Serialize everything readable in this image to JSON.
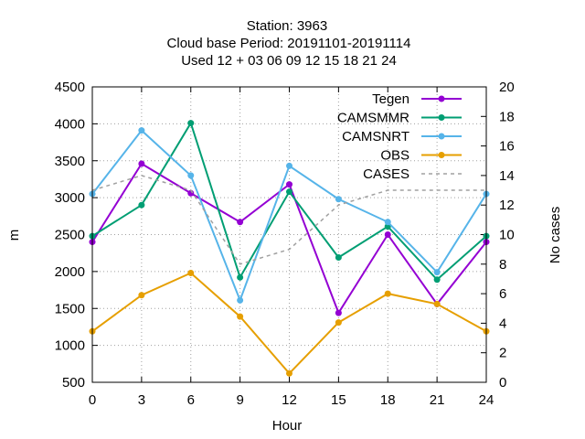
{
  "title_lines": [
    "Station:     3963",
    "Cloud base   Period: 20191101-20191114",
    "Used  12 + 03 06 09 12 15 18 21 24"
  ],
  "chart_data": {
    "type": "line",
    "x": [
      0,
      3,
      6,
      9,
      12,
      15,
      18,
      21,
      24
    ],
    "xlabel": "Hour",
    "ylabel": "m",
    "y2label": "No cases",
    "xlim": [
      0,
      24
    ],
    "ylim": [
      500,
      4500
    ],
    "y2lim": [
      0,
      20
    ],
    "xticks": [
      0,
      3,
      6,
      9,
      12,
      15,
      18,
      21,
      24
    ],
    "yticks": [
      500,
      1000,
      1500,
      2000,
      2500,
      3000,
      3500,
      4000,
      4500
    ],
    "y2ticks": [
      0,
      2,
      4,
      6,
      8,
      10,
      12,
      14,
      16,
      18,
      20
    ],
    "grid": true,
    "legend_position": "top-right",
    "series": [
      {
        "name": "Tegen",
        "color": "#9400d3",
        "axis": "y",
        "style": "solid",
        "marker": true,
        "values": [
          2400,
          3460,
          3060,
          2670,
          3180,
          1440,
          2500,
          1560,
          2400
        ]
      },
      {
        "name": "CAMSMMR",
        "color": "#009e73",
        "axis": "y",
        "style": "solid",
        "marker": true,
        "values": [
          2480,
          2900,
          4010,
          1920,
          3080,
          2190,
          2610,
          1890,
          2480
        ]
      },
      {
        "name": "CAMSNRT",
        "color": "#56b4e9",
        "axis": "y",
        "style": "solid",
        "marker": true,
        "values": [
          3050,
          3910,
          3300,
          1610,
          3430,
          2980,
          2670,
          1990,
          3050
        ]
      },
      {
        "name": "OBS",
        "color": "#e69f00",
        "axis": "y",
        "style": "solid",
        "marker": true,
        "values": [
          1190,
          1680,
          1980,
          1390,
          620,
          1310,
          1700,
          1560,
          1190
        ]
      },
      {
        "name": "CASES",
        "color": "#a0a0a0",
        "axis": "y2",
        "style": "dashed",
        "marker": false,
        "values": [
          13,
          14,
          13,
          8,
          9,
          12,
          13,
          13,
          13
        ]
      }
    ]
  }
}
